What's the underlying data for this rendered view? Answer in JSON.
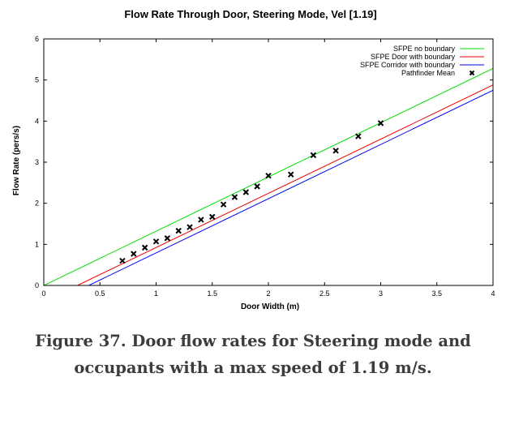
{
  "caption": {
    "line1": "Figure 37. Door flow rates for Steering mode and",
    "line2": "occupants with a max speed of 1.19 m/s."
  },
  "chart_data": {
    "type": "line",
    "title": "Flow Rate Through Door, Steering Mode, Vel [1.19]",
    "xlabel": "Door Width (m)",
    "ylabel": "Flow Rate (pers/s)",
    "xlim": [
      0,
      4
    ],
    "ylim": [
      0,
      6
    ],
    "x_ticks": [
      0,
      0.5,
      1,
      1.5,
      2,
      2.5,
      3,
      3.5,
      4
    ],
    "x_tick_labels": [
      "0",
      "0.5",
      "1",
      "1.5",
      "2",
      "2.5",
      "3",
      "3.5",
      "4"
    ],
    "y_ticks": [
      0,
      1,
      2,
      3,
      4,
      5,
      6
    ],
    "y_tick_labels": [
      "0",
      "1",
      "2",
      "3",
      "4",
      "5",
      "6"
    ],
    "grid": false,
    "legend_position": "top-right",
    "series": [
      {
        "name": "SFPE no boundary",
        "kind": "line",
        "color": "#00dd00",
        "x": [
          0,
          4
        ],
        "y": [
          0,
          5.28
        ]
      },
      {
        "name": "SFPE Door with boundary",
        "kind": "line",
        "color": "#ee0000",
        "x": [
          0.3,
          4
        ],
        "y": [
          0,
          4.88
        ]
      },
      {
        "name": "SFPE Corridor with boundary",
        "kind": "line",
        "color": "#0000ee",
        "x": [
          0.4,
          4
        ],
        "y": [
          0,
          4.75
        ]
      },
      {
        "name": "Pathfinder Mean",
        "kind": "scatter",
        "marker": "x",
        "color": "#000000",
        "x": [
          0.7,
          0.8,
          0.9,
          1.0,
          1.1,
          1.2,
          1.3,
          1.4,
          1.5,
          1.6,
          1.7,
          1.8,
          1.9,
          2.0,
          2.2,
          2.4,
          2.6,
          2.8,
          3.0
        ],
        "y": [
          0.6,
          0.77,
          0.92,
          1.07,
          1.15,
          1.33,
          1.42,
          1.6,
          1.67,
          1.97,
          2.15,
          2.27,
          2.41,
          2.67,
          2.7,
          3.17,
          3.28,
          3.63,
          3.95
        ]
      }
    ]
  }
}
